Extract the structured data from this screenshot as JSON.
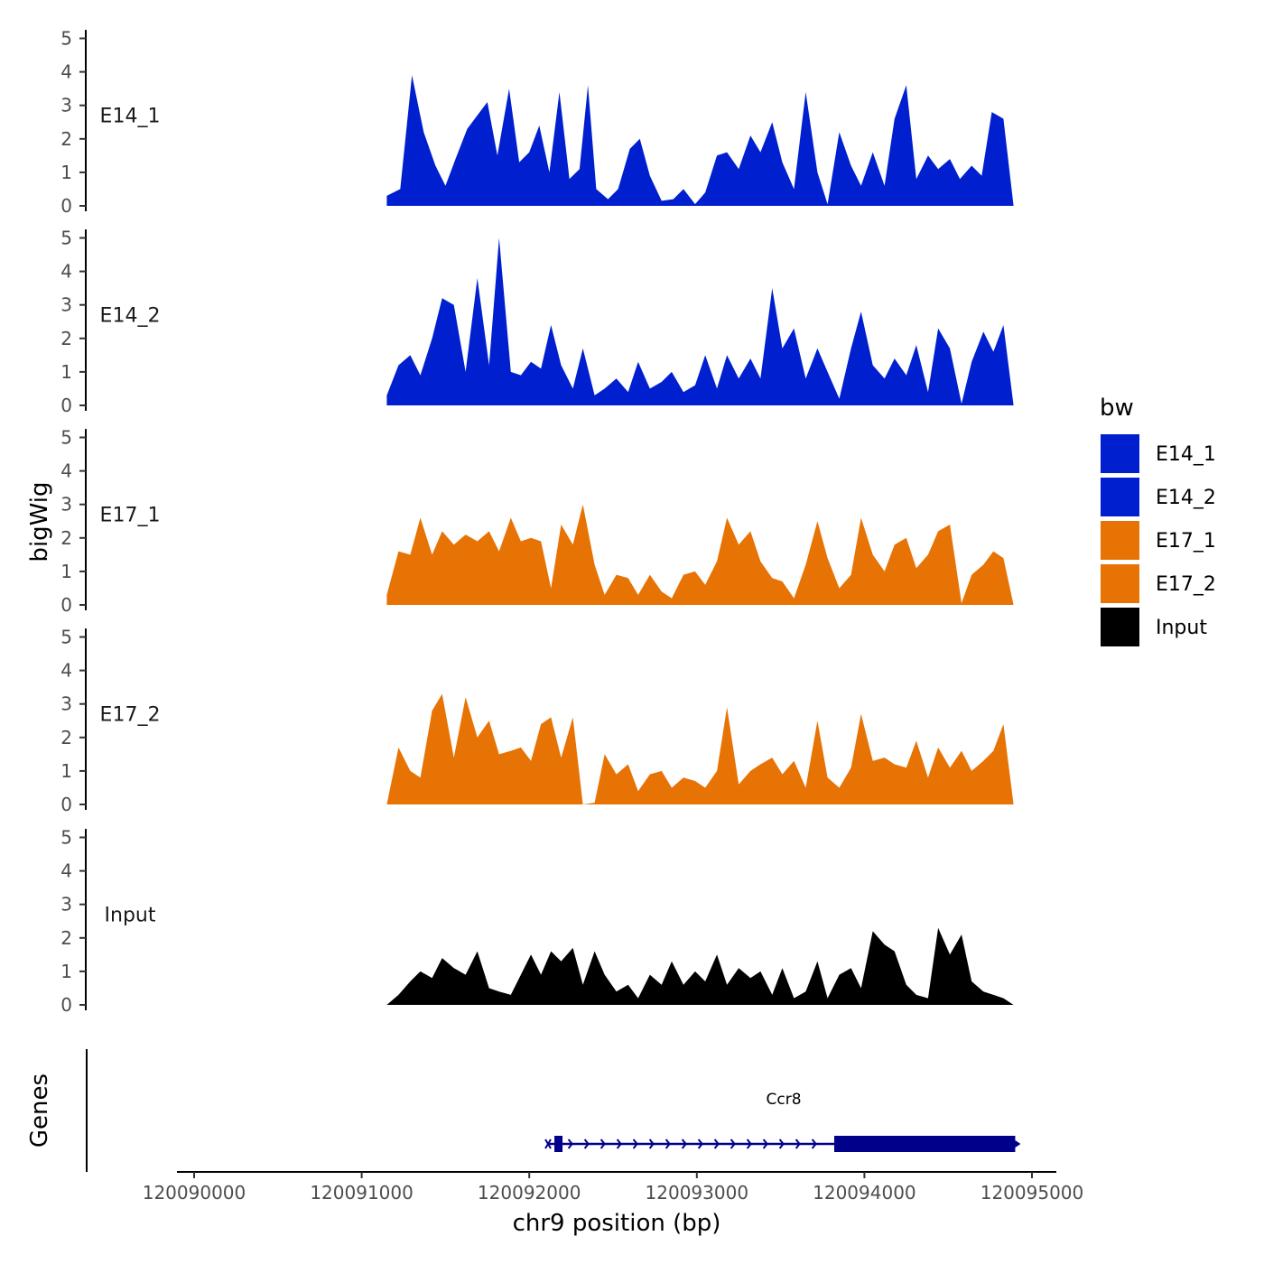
{
  "chart_data": {
    "type": "area",
    "ylabel": "bigWig",
    "xlabel": "chr9 position (bp)",
    "genes_label": "Genes",
    "xlim": [
      120089900,
      120095050
    ],
    "ylim": [
      0,
      5.2
    ],
    "x_ticks": [
      120090000,
      120091000,
      120092000,
      120093000,
      120094000,
      120095000
    ],
    "x_tick_labels": [
      "120090000",
      "120091000",
      "120092000",
      "120093000",
      "120094000",
      "120095000"
    ],
    "y_ticks": [
      0,
      1,
      2,
      3,
      4,
      5
    ],
    "y_tick_labels": [
      "0",
      "1",
      "2",
      "3",
      "4",
      "5"
    ],
    "legend": {
      "title": "bw",
      "items": [
        {
          "name": "E14_1",
          "color": "#0020D0"
        },
        {
          "name": "E14_2",
          "color": "#0020D0"
        },
        {
          "name": "E17_1",
          "color": "#E87305"
        },
        {
          "name": "E17_2",
          "color": "#E87305"
        },
        {
          "name": "Input",
          "color": "#000000"
        }
      ]
    },
    "series": [
      {
        "name": "E14_1",
        "color": "#0020D0",
        "x": [
          120091150,
          120091230,
          120091300,
          120091370,
          120091440,
          120091500,
          120091560,
          120091630,
          120091690,
          120091750,
          120091810,
          120091880,
          120091940,
          120092000,
          120092060,
          120092120,
          120092180,
          120092240,
          120092300,
          120092350,
          120092400,
          120092470,
          120092530,
          120092600,
          120092660,
          120092720,
          120092790,
          120092860,
          120092920,
          120092990,
          120093050,
          120093120,
          120093180,
          120093250,
          120093320,
          120093380,
          120093450,
          120093510,
          120093580,
          120093650,
          120093720,
          120093780,
          120093850,
          120093920,
          120093980,
          120094050,
          120094120,
          120094180,
          120094250,
          120094310,
          120094380,
          120094440,
          120094510,
          120094570,
          120094640,
          120094700,
          120094760,
          120094830,
          120094890
        ],
        "y": [
          0.3,
          0.5,
          3.9,
          2.2,
          1.2,
          0.6,
          1.4,
          2.3,
          2.7,
          3.1,
          1.5,
          3.5,
          1.3,
          1.6,
          2.4,
          1.0,
          3.4,
          0.8,
          1.1,
          3.6,
          0.5,
          0.2,
          0.5,
          1.7,
          2.0,
          0.9,
          0.15,
          0.2,
          0.5,
          0.05,
          0.4,
          1.5,
          1.6,
          1.1,
          2.1,
          1.6,
          2.5,
          1.3,
          0.5,
          3.4,
          1.0,
          0.05,
          2.2,
          1.2,
          0.6,
          1.6,
          0.6,
          2.6,
          3.6,
          0.8,
          1.5,
          1.1,
          1.4,
          0.8,
          1.2,
          0.9,
          2.8,
          2.6,
          0.0
        ]
      },
      {
        "name": "E14_2",
        "color": "#0020D0",
        "x": [
          120091150,
          120091220,
          120091290,
          120091350,
          120091420,
          120091480,
          120091550,
          120091620,
          120091690,
          120091760,
          120091820,
          120091890,
          120091950,
          120092010,
          120092070,
          120092130,
          120092190,
          120092260,
          120092320,
          120092390,
          120092450,
          120092520,
          120092590,
          120092650,
          120092720,
          120092790,
          120092850,
          120092920,
          120092990,
          120093050,
          120093120,
          120093180,
          120093250,
          120093320,
          120093380,
          120093450,
          120093510,
          120093580,
          120093650,
          120093720,
          120093780,
          120093850,
          120093920,
          120093980,
          120094050,
          120094120,
          120094180,
          120094250,
          120094310,
          120094380,
          120094440,
          120094510,
          120094580,
          120094640,
          120094710,
          120094770,
          120094830,
          120094890
        ],
        "y": [
          0.3,
          1.2,
          1.5,
          0.9,
          2.0,
          3.2,
          3.0,
          1.0,
          3.8,
          1.2,
          5.0,
          1.0,
          0.9,
          1.3,
          1.1,
          2.4,
          1.2,
          0.5,
          1.7,
          0.3,
          0.5,
          0.8,
          0.4,
          1.3,
          0.5,
          0.7,
          1.0,
          0.4,
          0.6,
          1.5,
          0.5,
          1.5,
          0.8,
          1.4,
          0.8,
          3.5,
          1.7,
          2.3,
          0.8,
          1.7,
          1.0,
          0.2,
          1.7,
          2.8,
          1.2,
          0.8,
          1.4,
          0.9,
          1.8,
          0.4,
          2.3,
          1.7,
          0.05,
          1.3,
          2.2,
          1.6,
          2.4,
          0.0
        ]
      },
      {
        "name": "E17_1",
        "color": "#E87305",
        "x": [
          120091150,
          120091220,
          120091290,
          120091350,
          120091420,
          120091480,
          120091550,
          120091620,
          120091690,
          120091760,
          120091820,
          120091890,
          120091950,
          120092010,
          120092070,
          120092130,
          120092190,
          120092260,
          120092320,
          120092390,
          120092450,
          120092520,
          120092590,
          120092650,
          120092720,
          120092790,
          120092850,
          120092920,
          120092990,
          120093050,
          120093120,
          120093180,
          120093250,
          120093320,
          120093380,
          120093450,
          120093510,
          120093580,
          120093650,
          120093720,
          120093780,
          120093850,
          120093920,
          120093980,
          120094050,
          120094120,
          120094180,
          120094250,
          120094310,
          120094380,
          120094440,
          120094510,
          120094580,
          120094640,
          120094710,
          120094770,
          120094830,
          120094890
        ],
        "y": [
          0.3,
          1.6,
          1.5,
          2.6,
          1.5,
          2.2,
          1.8,
          2.1,
          1.9,
          2.2,
          1.6,
          2.6,
          1.9,
          2.0,
          1.9,
          0.5,
          2.4,
          1.8,
          3.0,
          1.2,
          0.3,
          0.9,
          0.8,
          0.3,
          0.9,
          0.4,
          0.2,
          0.9,
          1.0,
          0.6,
          1.3,
          2.6,
          1.8,
          2.2,
          1.3,
          0.8,
          0.7,
          0.2,
          1.2,
          2.5,
          1.4,
          0.5,
          0.9,
          2.6,
          1.5,
          1.0,
          1.8,
          2.0,
          1.1,
          1.5,
          2.2,
          2.4,
          0.05,
          0.9,
          1.2,
          1.6,
          1.4,
          0.0
        ]
      },
      {
        "name": "E17_2",
        "color": "#E87305",
        "x": [
          120091150,
          120091220,
          120091290,
          120091350,
          120091420,
          120091480,
          120091550,
          120091620,
          120091690,
          120091760,
          120091820,
          120091890,
          120091950,
          120092010,
          120092070,
          120092130,
          120092190,
          120092260,
          120092320,
          120092390,
          120092450,
          120092520,
          120092590,
          120092650,
          120092720,
          120092790,
          120092850,
          120092920,
          120092990,
          120093050,
          120093120,
          120093180,
          120093250,
          120093320,
          120093380,
          120093450,
          120093510,
          120093580,
          120093650,
          120093720,
          120093780,
          120093850,
          120093920,
          120093980,
          120094050,
          120094120,
          120094180,
          120094250,
          120094310,
          120094380,
          120094440,
          120094510,
          120094580,
          120094640,
          120094710,
          120094770,
          120094830,
          120094890
        ],
        "y": [
          0.0,
          1.7,
          1.0,
          0.8,
          2.8,
          3.3,
          1.4,
          3.2,
          2.0,
          2.5,
          1.5,
          1.6,
          1.7,
          1.3,
          2.4,
          2.6,
          1.4,
          2.6,
          0.0,
          0.05,
          1.5,
          0.9,
          1.2,
          0.4,
          0.9,
          1.0,
          0.5,
          0.8,
          0.7,
          0.5,
          1.0,
          2.9,
          0.6,
          1.0,
          1.2,
          1.4,
          0.9,
          1.3,
          0.5,
          2.5,
          0.8,
          0.5,
          1.1,
          2.7,
          1.3,
          1.4,
          1.2,
          1.1,
          1.9,
          0.8,
          1.7,
          1.1,
          1.6,
          1.0,
          1.3,
          1.6,
          2.4,
          0.0
        ]
      },
      {
        "name": "Input",
        "color": "#000000",
        "x": [
          120091150,
          120091220,
          120091290,
          120091350,
          120091420,
          120091480,
          120091550,
          120091620,
          120091690,
          120091760,
          120091820,
          120091890,
          120091950,
          120092010,
          120092070,
          120092130,
          120092190,
          120092260,
          120092320,
          120092390,
          120092450,
          120092520,
          120092590,
          120092650,
          120092720,
          120092790,
          120092850,
          120092920,
          120092990,
          120093050,
          120093120,
          120093180,
          120093250,
          120093320,
          120093380,
          120093450,
          120093510,
          120093580,
          120093650,
          120093720,
          120093780,
          120093850,
          120093920,
          120093980,
          120094050,
          120094120,
          120094180,
          120094250,
          120094310,
          120094380,
          120094440,
          120094510,
          120094580,
          120094640,
          120094710,
          120094770,
          120094830,
          120094890
        ],
        "y": [
          0.0,
          0.3,
          0.7,
          1.0,
          0.8,
          1.4,
          1.1,
          0.9,
          1.6,
          0.5,
          0.4,
          0.3,
          0.9,
          1.5,
          0.9,
          1.6,
          1.3,
          1.7,
          0.6,
          1.6,
          0.9,
          0.4,
          0.6,
          0.2,
          0.9,
          0.6,
          1.3,
          0.6,
          1.0,
          0.7,
          1.5,
          0.6,
          1.1,
          0.8,
          1.0,
          0.3,
          1.1,
          0.2,
          0.4,
          1.3,
          0.2,
          0.9,
          1.1,
          0.5,
          2.2,
          1.8,
          1.6,
          0.6,
          0.3,
          0.2,
          2.3,
          1.5,
          2.1,
          0.7,
          0.4,
          0.3,
          0.2,
          0.0
        ]
      }
    ],
    "genes": [
      {
        "name": "Ccr8",
        "color": "#00008B",
        "strand": "+",
        "start": 120092150,
        "end": 120094900,
        "exons": [
          [
            120092150,
            120092180
          ],
          [
            120093820,
            120094900
          ]
        ]
      }
    ]
  }
}
